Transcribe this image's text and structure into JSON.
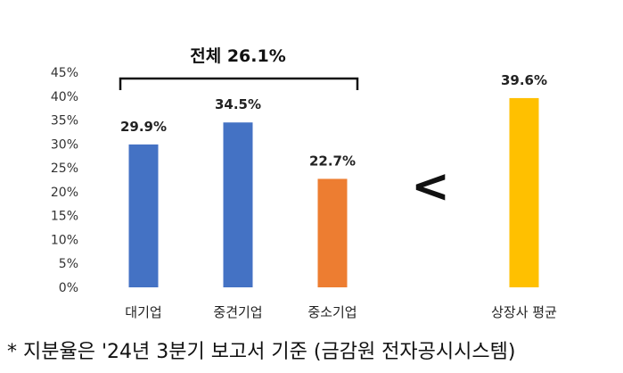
{
  "chart_data": {
    "type": "bar",
    "categories": [
      "대기업",
      "중견기업",
      "중소기업",
      "상장사 평균"
    ],
    "values": [
      29.9,
      34.5,
      22.7,
      39.6
    ],
    "data_labels": [
      "29.9%",
      "34.5%",
      "22.7%",
      "39.6%"
    ],
    "bar_colors": [
      "#4472C4",
      "#4472C4",
      "#ED7D31",
      "#FFC000"
    ],
    "ylim": [
      0,
      45
    ],
    "yticks": [
      "0%",
      "5%",
      "10%",
      "15%",
      "20%",
      "25%",
      "30%",
      "35%",
      "40%",
      "45%"
    ],
    "bracket_label": "전체 26.1%",
    "comparison_symbol": "<",
    "grid": false
  },
  "footnote": "* 지분율은 '24년 3분기 보고서 기준 (금감원 전자공시시스템)"
}
